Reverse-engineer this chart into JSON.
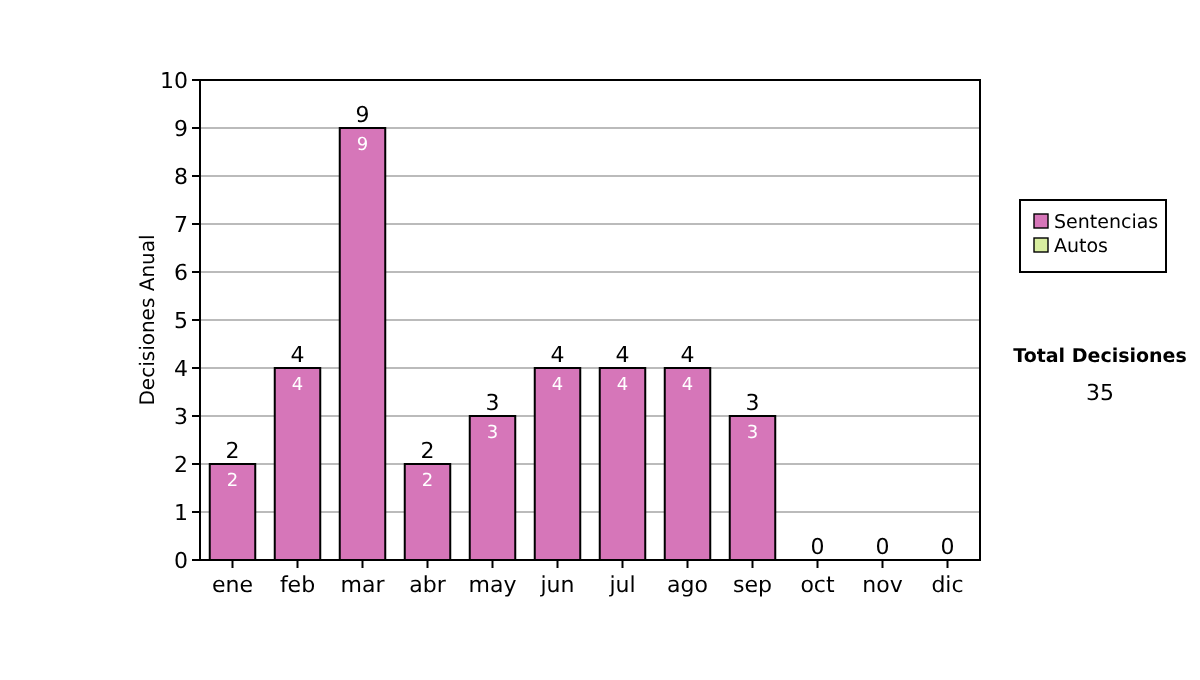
{
  "chart_data": {
    "type": "bar",
    "stacked": true,
    "ylabel": "Decisiones Anual",
    "categories": [
      "ene",
      "feb",
      "mar",
      "abr",
      "may",
      "jun",
      "jul",
      "ago",
      "sep",
      "oct",
      "nov",
      "dic"
    ],
    "series": [
      {
        "name": "Sentencias",
        "color": "#d676b9",
        "values": [
          2,
          4,
          9,
          2,
          3,
          4,
          4,
          4,
          3,
          0,
          0,
          0
        ],
        "value_labels": [
          "2",
          "4",
          "9",
          "2",
          "3",
          "4",
          "4",
          "4",
          "3",
          null,
          null,
          null
        ]
      },
      {
        "name": "Autos",
        "color": "#d8eea0",
        "values": [
          0,
          0,
          0,
          0,
          0,
          0,
          0,
          0,
          0,
          0,
          0,
          0
        ]
      }
    ],
    "totals": [
      "2",
      "4",
      "9",
      "2",
      "3",
      "4",
      "4",
      "4",
      "3",
      "0",
      "0",
      "0"
    ],
    "ylim": [
      0,
      10
    ],
    "yticks": [
      0,
      1,
      2,
      3,
      4,
      5,
      6,
      7,
      8,
      9,
      10
    ],
    "grid": "y",
    "legend": "right",
    "annotations": [
      "Total Decisiones",
      "35"
    ]
  }
}
